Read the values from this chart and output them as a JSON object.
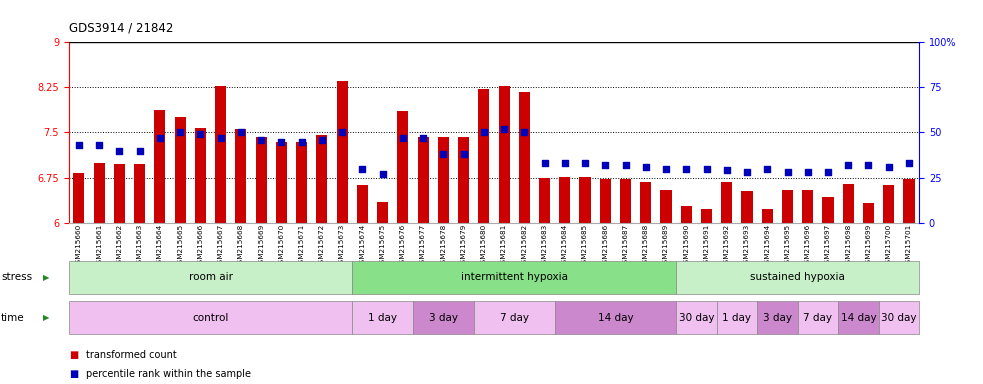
{
  "title": "GDS3914 / 21842",
  "samples": [
    "GSM215660",
    "GSM215661",
    "GSM215662",
    "GSM215663",
    "GSM215664",
    "GSM215665",
    "GSM215666",
    "GSM215667",
    "GSM215668",
    "GSM215669",
    "GSM215670",
    "GSM215671",
    "GSM215672",
    "GSM215673",
    "GSM215674",
    "GSM215675",
    "GSM215676",
    "GSM215677",
    "GSM215678",
    "GSM215679",
    "GSM215680",
    "GSM215681",
    "GSM215682",
    "GSM215683",
    "GSM215684",
    "GSM215685",
    "GSM215686",
    "GSM215687",
    "GSM215688",
    "GSM215689",
    "GSM215690",
    "GSM215691",
    "GSM215692",
    "GSM215693",
    "GSM215694",
    "GSM215695",
    "GSM215696",
    "GSM215697",
    "GSM215698",
    "GSM215699",
    "GSM215700",
    "GSM215701"
  ],
  "red_values": [
    6.82,
    7.0,
    6.97,
    6.97,
    7.87,
    7.75,
    7.58,
    8.28,
    7.55,
    7.42,
    7.35,
    7.35,
    7.45,
    8.35,
    6.62,
    6.35,
    7.85,
    7.43,
    7.43,
    7.43,
    8.23,
    8.27,
    8.17,
    6.75,
    6.76,
    6.76,
    6.72,
    6.73,
    6.68,
    6.55,
    6.27,
    6.22,
    6.67,
    6.52,
    6.22,
    6.55,
    6.55,
    6.42,
    6.65,
    6.33,
    6.62,
    6.72
  ],
  "blue_values": [
    43,
    43,
    40,
    40,
    47,
    50,
    49,
    47,
    50,
    46,
    45,
    45,
    46,
    50,
    30,
    27,
    47,
    47,
    38,
    38,
    50,
    52,
    50,
    33,
    33,
    33,
    32,
    32,
    31,
    30,
    30,
    30,
    29,
    28,
    30,
    28,
    28,
    28,
    32,
    32,
    31,
    33
  ],
  "ylim_left": [
    6.0,
    9.0
  ],
  "ylim_right": [
    0,
    100
  ],
  "yticks_left": [
    6.0,
    6.75,
    7.5,
    8.25,
    9.0
  ],
  "yticks_right": [
    0,
    25,
    50,
    75,
    100
  ],
  "hlines": [
    6.75,
    7.5,
    8.25
  ],
  "bar_color": "#cc0000",
  "dot_color": "#0000bb",
  "bar_width": 0.55,
  "dot_size": 18,
  "stress_groups": [
    {
      "label": "room air",
      "start": 0,
      "end": 14,
      "color": "#c8f0c8"
    },
    {
      "label": "intermittent hypoxia",
      "start": 14,
      "end": 30,
      "color": "#88e088"
    },
    {
      "label": "sustained hypoxia",
      "start": 30,
      "end": 42,
      "color": "#c8f0c8"
    }
  ],
  "time_groups": [
    {
      "label": "control",
      "start": 0,
      "end": 14,
      "color": "#f0c0f0"
    },
    {
      "label": "1 day",
      "start": 14,
      "end": 17,
      "color": "#f0c0f0"
    },
    {
      "label": "3 day",
      "start": 17,
      "end": 20,
      "color": "#cc88cc"
    },
    {
      "label": "7 day",
      "start": 20,
      "end": 24,
      "color": "#f0c0f0"
    },
    {
      "label": "14 day",
      "start": 24,
      "end": 30,
      "color": "#cc88cc"
    },
    {
      "label": "30 day",
      "start": 30,
      "end": 32,
      "color": "#f0c0f0"
    },
    {
      "label": "1 day",
      "start": 32,
      "end": 34,
      "color": "#f0c0f0"
    },
    {
      "label": "3 day",
      "start": 34,
      "end": 36,
      "color": "#cc88cc"
    },
    {
      "label": "7 day",
      "start": 36,
      "end": 38,
      "color": "#f0c0f0"
    },
    {
      "label": "14 day",
      "start": 38,
      "end": 40,
      "color": "#cc88cc"
    },
    {
      "label": "30 day",
      "start": 40,
      "end": 42,
      "color": "#f0c0f0"
    }
  ],
  "xtick_bg": "#cccccc",
  "fig_width": 9.83,
  "fig_height": 3.84,
  "dpi": 100
}
